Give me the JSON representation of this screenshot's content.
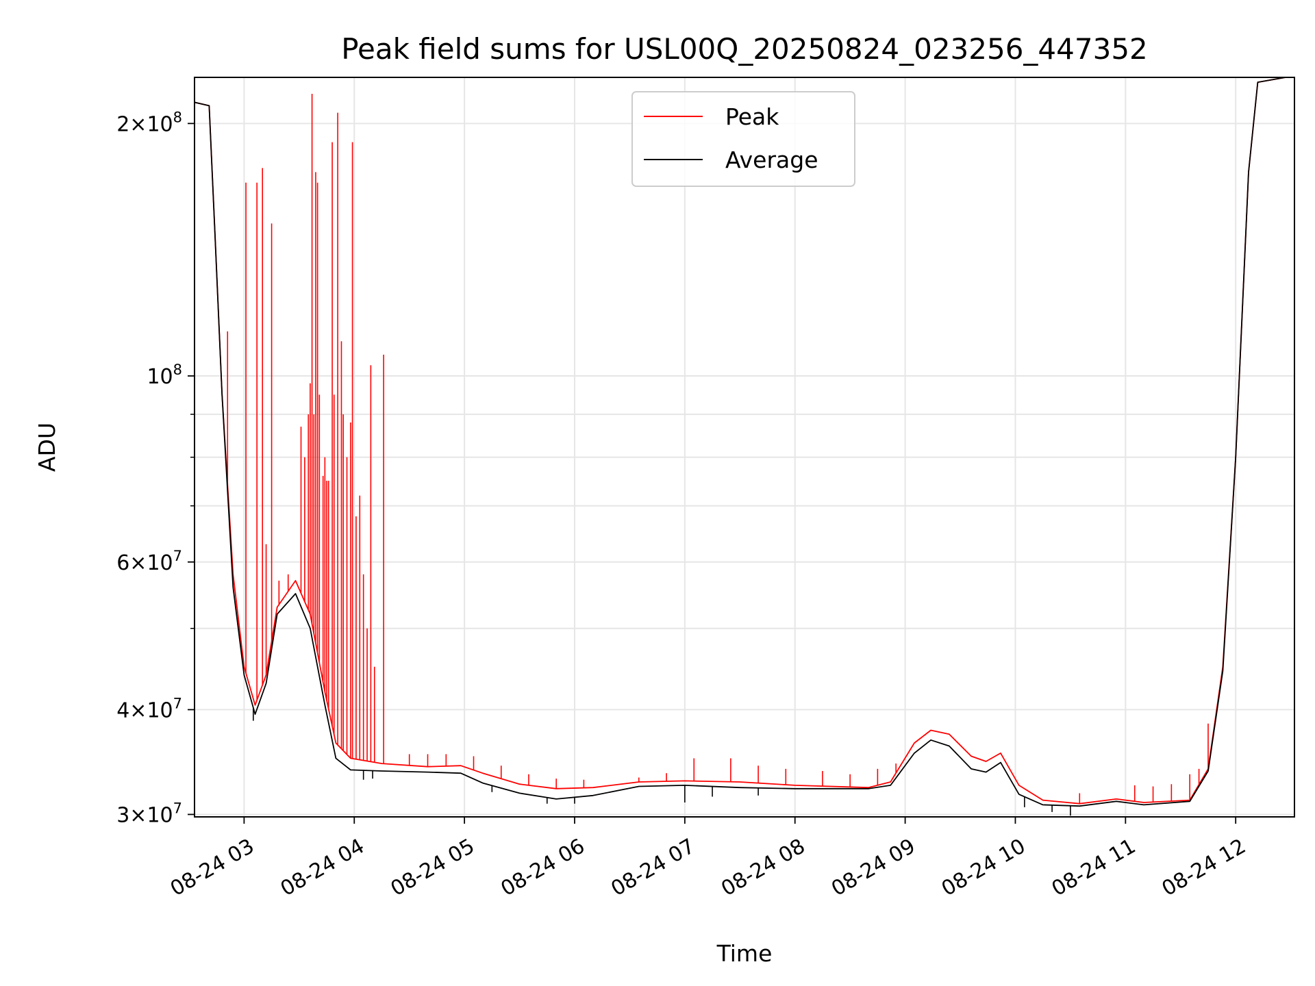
{
  "chart_data": {
    "type": "line",
    "title": "Peak field sums for USL00Q_20250824_023256_447352",
    "xlabel": "Time",
    "ylabel": "ADU",
    "yscale": "log",
    "ylim": [
      29800000,
      227000000
    ],
    "xlim": [
      "2025-08-24 02:33",
      "2025-08-24 12:32"
    ],
    "grid": true,
    "legend_position": "top-center",
    "x_tick_labels": [
      "08-24 03",
      "08-24 04",
      "08-24 05",
      "08-24 06",
      "08-24 07",
      "08-24 08",
      "08-24 09",
      "08-24 10",
      "08-24 11",
      "08-24 12"
    ],
    "x_tick_times": [
      "2025-08-24 03:00",
      "2025-08-24 04:00",
      "2025-08-24 05:00",
      "2025-08-24 06:00",
      "2025-08-24 07:00",
      "2025-08-24 08:00",
      "2025-08-24 09:00",
      "2025-08-24 10:00",
      "2025-08-24 11:00",
      "2025-08-24 12:00"
    ],
    "y_major_ticks": [
      {
        "value": 30000000,
        "mantissa": "3",
        "exp": "7"
      },
      {
        "value": 40000000,
        "mantissa": "4",
        "exp": "7"
      },
      {
        "value": 60000000,
        "mantissa": "6",
        "exp": "7"
      },
      {
        "value": 100000000,
        "mantissa": "",
        "exp": "8"
      },
      {
        "value": 200000000,
        "mantissa": "2",
        "exp": "8"
      }
    ],
    "y_minor_grid": [
      50000000,
      70000000,
      80000000,
      90000000
    ],
    "series": [
      {
        "name": "Peak",
        "color": "#ff0000",
        "baseline": [
          [
            "2025-08-24 02:33",
            212000000
          ],
          [
            "2025-08-24 02:41",
            210000000
          ],
          [
            "2025-08-24 02:44",
            150000000
          ],
          [
            "2025-08-24 02:48",
            95000000
          ],
          [
            "2025-08-24 02:54",
            58000000
          ],
          [
            "2025-08-24 03:00",
            45000000
          ],
          [
            "2025-08-24 03:06",
            40500000
          ],
          [
            "2025-08-24 03:12",
            44000000
          ],
          [
            "2025-08-24 03:18",
            53000000
          ],
          [
            "2025-08-24 03:28",
            57000000
          ],
          [
            "2025-08-24 03:36",
            52000000
          ],
          [
            "2025-08-24 03:44",
            42000000
          ],
          [
            "2025-08-24 03:50",
            36500000
          ],
          [
            "2025-08-24 03:58",
            35000000
          ],
          [
            "2025-08-24 04:15",
            34500000
          ],
          [
            "2025-08-24 04:40",
            34200000
          ],
          [
            "2025-08-24 04:58",
            34300000
          ],
          [
            "2025-08-24 05:10",
            33600000
          ],
          [
            "2025-08-24 05:30",
            32600000
          ],
          [
            "2025-08-24 05:50",
            32200000
          ],
          [
            "2025-08-24 06:10",
            32300000
          ],
          [
            "2025-08-24 06:35",
            32800000
          ],
          [
            "2025-08-24 07:00",
            32900000
          ],
          [
            "2025-08-24 07:30",
            32800000
          ],
          [
            "2025-08-24 08:00",
            32500000
          ],
          [
            "2025-08-24 08:40",
            32300000
          ],
          [
            "2025-08-24 08:52",
            32800000
          ],
          [
            "2025-08-24 09:05",
            36500000
          ],
          [
            "2025-08-24 09:14",
            37800000
          ],
          [
            "2025-08-24 09:24",
            37400000
          ],
          [
            "2025-08-24 09:36",
            35200000
          ],
          [
            "2025-08-24 09:44",
            34700000
          ],
          [
            "2025-08-24 09:52",
            35500000
          ],
          [
            "2025-08-24 10:02",
            32500000
          ],
          [
            "2025-08-24 10:15",
            31200000
          ],
          [
            "2025-08-24 10:35",
            30900000
          ],
          [
            "2025-08-24 10:55",
            31300000
          ],
          [
            "2025-08-24 11:10",
            31000000
          ],
          [
            "2025-08-24 11:35",
            31200000
          ],
          [
            "2025-08-24 11:45",
            34000000
          ],
          [
            "2025-08-24 11:53",
            45000000
          ],
          [
            "2025-08-24 12:00",
            80000000
          ],
          [
            "2025-08-24 12:07",
            175000000
          ],
          [
            "2025-08-24 12:12",
            224000000
          ],
          [
            "2025-08-24 12:32",
            228000000
          ]
        ],
        "spikes": [
          [
            "2025-08-24 02:51",
            113000000
          ],
          [
            "2025-08-24 03:01",
            170000000
          ],
          [
            "2025-08-24 03:07",
            170000000
          ],
          [
            "2025-08-24 03:10",
            177000000
          ],
          [
            "2025-08-24 03:12",
            63000000
          ],
          [
            "2025-08-24 03:15",
            152000000
          ],
          [
            "2025-08-24 03:19",
            57000000
          ],
          [
            "2025-08-24 03:24",
            58000000
          ],
          [
            "2025-08-24 03:31",
            87000000
          ],
          [
            "2025-08-24 03:33",
            80000000
          ],
          [
            "2025-08-24 03:35",
            90000000
          ],
          [
            "2025-08-24 03:36",
            98000000
          ],
          [
            "2025-08-24 03:37",
            217000000
          ],
          [
            "2025-08-24 03:38",
            90000000
          ],
          [
            "2025-08-24 03:39",
            175000000
          ],
          [
            "2025-08-24 03:40",
            170000000
          ],
          [
            "2025-08-24 03:41",
            95000000
          ],
          [
            "2025-08-24 03:43",
            76000000
          ],
          [
            "2025-08-24 03:44",
            80000000
          ],
          [
            "2025-08-24 03:45",
            75000000
          ],
          [
            "2025-08-24 03:46",
            75000000
          ],
          [
            "2025-08-24 03:48",
            190000000
          ],
          [
            "2025-08-24 03:49",
            95000000
          ],
          [
            "2025-08-24 03:51",
            206000000
          ],
          [
            "2025-08-24 03:53",
            110000000
          ],
          [
            "2025-08-24 03:54",
            90000000
          ],
          [
            "2025-08-24 03:56",
            80000000
          ],
          [
            "2025-08-24 03:58",
            88000000
          ],
          [
            "2025-08-24 03:59",
            190000000
          ],
          [
            "2025-08-24 04:01",
            68000000
          ],
          [
            "2025-08-24 04:03",
            72000000
          ],
          [
            "2025-08-24 04:05",
            58000000
          ],
          [
            "2025-08-24 04:07",
            50000000
          ],
          [
            "2025-08-24 04:09",
            103000000
          ],
          [
            "2025-08-24 04:11",
            45000000
          ],
          [
            "2025-08-24 04:16",
            106000000
          ],
          [
            "2025-08-24 04:30",
            35400000
          ],
          [
            "2025-08-24 04:40",
            35400000
          ],
          [
            "2025-08-24 04:50",
            35400000
          ],
          [
            "2025-08-24 05:05",
            35200000
          ],
          [
            "2025-08-24 05:20",
            34300000
          ],
          [
            "2025-08-24 05:35",
            33500000
          ],
          [
            "2025-08-24 05:50",
            33100000
          ],
          [
            "2025-08-24 06:05",
            33000000
          ],
          [
            "2025-08-24 06:35",
            33200000
          ],
          [
            "2025-08-24 06:50",
            33600000
          ],
          [
            "2025-08-24 07:05",
            35000000
          ],
          [
            "2025-08-24 07:25",
            35000000
          ],
          [
            "2025-08-24 07:40",
            34300000
          ],
          [
            "2025-08-24 07:55",
            34000000
          ],
          [
            "2025-08-24 08:15",
            33800000
          ],
          [
            "2025-08-24 08:30",
            33500000
          ],
          [
            "2025-08-24 08:45",
            34000000
          ],
          [
            "2025-08-24 08:55",
            34500000
          ],
          [
            "2025-08-24 10:35",
            31800000
          ],
          [
            "2025-08-24 11:05",
            32500000
          ],
          [
            "2025-08-24 11:15",
            32400000
          ],
          [
            "2025-08-24 11:25",
            32600000
          ],
          [
            "2025-08-24 11:35",
            33500000
          ],
          [
            "2025-08-24 11:40",
            34000000
          ],
          [
            "2025-08-24 11:45",
            38500000
          ]
        ]
      },
      {
        "name": "Average",
        "color": "#000000",
        "baseline": [
          [
            "2025-08-24 02:33",
            212000000
          ],
          [
            "2025-08-24 02:41",
            210000000
          ],
          [
            "2025-08-24 02:44",
            150000000
          ],
          [
            "2025-08-24 02:48",
            95000000
          ],
          [
            "2025-08-24 02:54",
            56000000
          ],
          [
            "2025-08-24 03:00",
            44000000
          ],
          [
            "2025-08-24 03:06",
            39500000
          ],
          [
            "2025-08-24 03:12",
            43000000
          ],
          [
            "2025-08-24 03:18",
            52000000
          ],
          [
            "2025-08-24 03:28",
            55000000
          ],
          [
            "2025-08-24 03:36",
            50000000
          ],
          [
            "2025-08-24 03:44",
            40500000
          ],
          [
            "2025-08-24 03:50",
            35000000
          ],
          [
            "2025-08-24 03:58",
            33900000
          ],
          [
            "2025-08-24 04:15",
            33800000
          ],
          [
            "2025-08-24 04:40",
            33700000
          ],
          [
            "2025-08-24 04:58",
            33600000
          ],
          [
            "2025-08-24 05:10",
            32700000
          ],
          [
            "2025-08-24 05:30",
            31800000
          ],
          [
            "2025-08-24 05:50",
            31300000
          ],
          [
            "2025-08-24 06:10",
            31600000
          ],
          [
            "2025-08-24 06:35",
            32400000
          ],
          [
            "2025-08-24 07:00",
            32500000
          ],
          [
            "2025-08-24 07:30",
            32300000
          ],
          [
            "2025-08-24 08:00",
            32200000
          ],
          [
            "2025-08-24 08:40",
            32200000
          ],
          [
            "2025-08-24 08:52",
            32500000
          ],
          [
            "2025-08-24 09:05",
            35500000
          ],
          [
            "2025-08-24 09:14",
            36800000
          ],
          [
            "2025-08-24 09:24",
            36200000
          ],
          [
            "2025-08-24 09:36",
            34000000
          ],
          [
            "2025-08-24 09:44",
            33700000
          ],
          [
            "2025-08-24 09:52",
            34600000
          ],
          [
            "2025-08-24 10:02",
            31700000
          ],
          [
            "2025-08-24 10:15",
            30800000
          ],
          [
            "2025-08-24 10:35",
            30700000
          ],
          [
            "2025-08-24 10:55",
            31100000
          ],
          [
            "2025-08-24 11:10",
            30800000
          ],
          [
            "2025-08-24 11:35",
            31100000
          ],
          [
            "2025-08-24 11:45",
            33800000
          ],
          [
            "2025-08-24 11:53",
            44500000
          ],
          [
            "2025-08-24 12:00",
            80000000
          ],
          [
            "2025-08-24 12:07",
            175000000
          ],
          [
            "2025-08-24 12:12",
            224000000
          ],
          [
            "2025-08-24 12:32",
            228000000
          ]
        ],
        "dips": [
          [
            "2025-08-24 03:05",
            38800000
          ],
          [
            "2025-08-24 04:05",
            33000000
          ],
          [
            "2025-08-24 04:10",
            33100000
          ],
          [
            "2025-08-24 05:15",
            31900000
          ],
          [
            "2025-08-24 05:45",
            30900000
          ],
          [
            "2025-08-24 06:00",
            30900000
          ],
          [
            "2025-08-24 07:00",
            31000000
          ],
          [
            "2025-08-24 07:15",
            31500000
          ],
          [
            "2025-08-24 07:40",
            31600000
          ],
          [
            "2025-08-24 10:05",
            30600000
          ],
          [
            "2025-08-24 10:20",
            30200000
          ],
          [
            "2025-08-24 10:30",
            29900000
          ]
        ]
      }
    ]
  }
}
